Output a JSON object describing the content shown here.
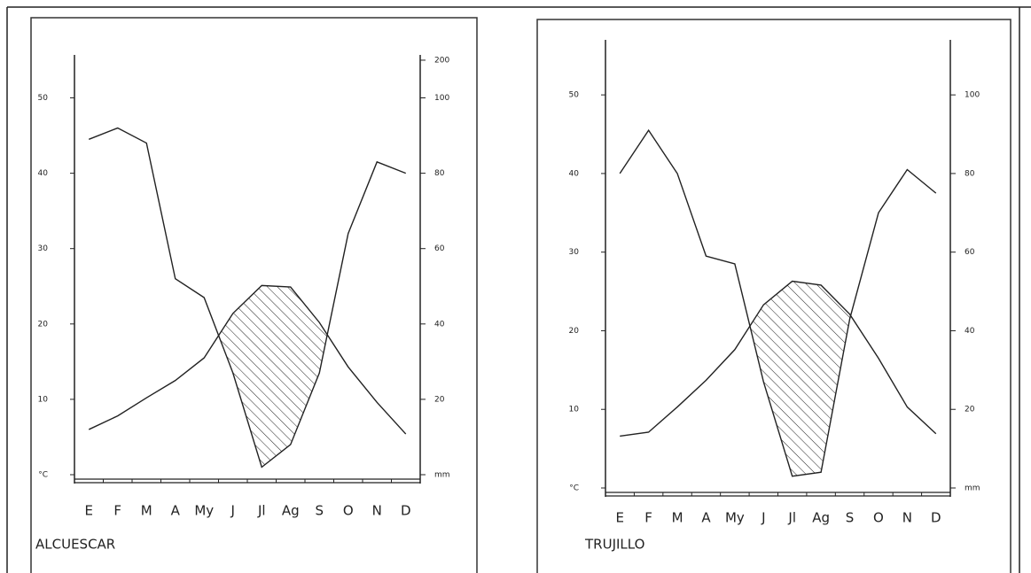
{
  "chart_data": [
    {
      "type": "line",
      "title": "ALCUESCAR",
      "categories": [
        "E",
        "F",
        "M",
        "A",
        "My",
        "J",
        "Jl",
        "Ag",
        "S",
        "O",
        "N",
        "D"
      ],
      "series": [
        {
          "color": "#222222",
          "values": [
            6.0,
            7.8,
            10.2,
            12.5,
            15.5,
            21.4,
            25.1,
            24.9,
            20.2,
            14.3,
            9.6,
            5.4
          ]
        },
        {
          "color": "#222222",
          "axis": "y2",
          "values": [
            89,
            92,
            88,
            52,
            47,
            27,
            2,
            8,
            27,
            64,
            83,
            80
          ]
        }
      ],
      "ylim": [
        0,
        55.7
      ],
      "yticks": [
        {
          "value": 0,
          "label": "°C"
        },
        10,
        20,
        30,
        40,
        50
      ],
      "y2lim": [
        0,
        214
      ],
      "y2scale": {
        "break": 100,
        "factor": 10
      },
      "y2ticks": [
        {
          "value": 0,
          "label": "mm"
        },
        20,
        40,
        60,
        80,
        100,
        200
      ],
      "hatch": true
    },
    {
      "type": "line",
      "title": "TRUJILLO",
      "categories": [
        "E",
        "F",
        "M",
        "A",
        "My",
        "J",
        "Jl",
        "Ag",
        "S",
        "O",
        "N",
        "D"
      ],
      "series": [
        {
          "color": "#222222",
          "values": [
            6.6,
            7.1,
            10.3,
            13.7,
            17.6,
            23.3,
            26.3,
            25.8,
            22.1,
            16.5,
            10.3,
            6.9
          ]
        },
        {
          "color": "#222222",
          "axis": "y2",
          "values": [
            80,
            91,
            80,
            59,
            57,
            27,
            3,
            4,
            43,
            70,
            81,
            75
          ]
        }
      ],
      "ylim": [
        0,
        57
      ],
      "yticks": [
        {
          "value": 0,
          "label": "°C"
        },
        10,
        20,
        30,
        40,
        50
      ],
      "y2lim": [
        0,
        114
      ],
      "y2ticks": [
        {
          "value": 0,
          "label": "mm"
        },
        20,
        40,
        60,
        80,
        100
      ],
      "hatch": true
    }
  ]
}
